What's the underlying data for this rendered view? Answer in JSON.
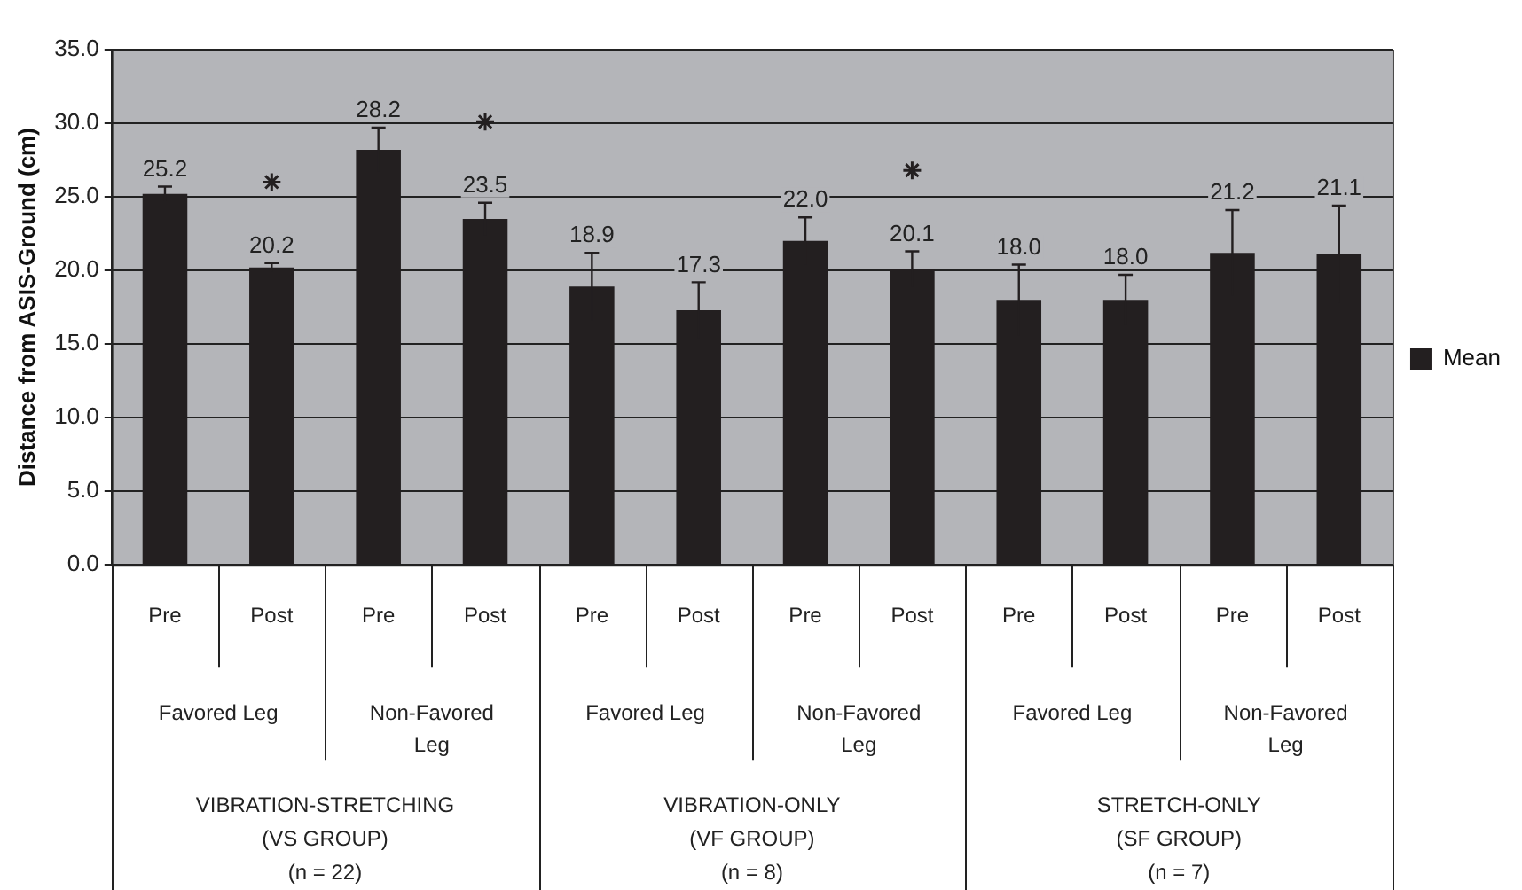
{
  "chart_data": {
    "type": "bar",
    "ylabel": "Distance from ASIS-Ground (cm)",
    "categories": [
      "Pre",
      "Post",
      "Pre",
      "Post",
      "Pre",
      "Post",
      "Pre",
      "Post",
      "Pre",
      "Post",
      "Pre",
      "Post"
    ],
    "series": [
      {
        "name": "Mean",
        "color": "#231f20",
        "values": [
          25.2,
          20.2,
          28.2,
          23.5,
          18.9,
          17.3,
          22.0,
          20.1,
          18.0,
          18.0,
          21.2,
          21.1
        ],
        "errors": [
          0.5,
          0.3,
          1.5,
          1.1,
          2.3,
          1.9,
          1.6,
          1.2,
          2.4,
          1.7,
          2.9,
          3.3
        ],
        "value_labels": [
          "25.2",
          "20.2",
          "28.2",
          "23.5",
          "18.9",
          "17.3",
          "22.0",
          "20.1",
          "18.0",
          "18.0",
          "21.2",
          "21.1"
        ]
      },
      {
        "type": "scatter",
        "marker": "cross",
        "color": "#231f20",
        "values": [
          null,
          26.0,
          null,
          30.1,
          null,
          null,
          null,
          26.8,
          null,
          null,
          null,
          null
        ]
      }
    ],
    "annotations": [
      "Favored Leg",
      "Non-Favored Leg",
      "Favored Leg",
      "Non-Favored Leg",
      "Favored Leg",
      "Non-Favored Leg",
      "VIBRATION-STRETCHING\n(VS GROUP)\n(n = 22)",
      "VIBRATION-ONLY\n(VF GROUP)\n(n = 8)",
      "STRETCH-ONLY\n(SF GROUP)\n(n = 7)"
    ],
    "ylim": [
      0,
      35
    ],
    "yticks": [
      {
        "value": 0,
        "label": "0.0"
      },
      {
        "value": 5,
        "label": "5.0"
      },
      {
        "value": 10,
        "label": "10.0"
      },
      {
        "value": 15,
        "label": "15.0"
      },
      {
        "value": 20,
        "label": "20.0"
      },
      {
        "value": 25,
        "label": "25.0"
      },
      {
        "value": 30,
        "label": "30.0"
      },
      {
        "value": 35,
        "label": "35.0"
      }
    ],
    "grid": "y",
    "legend": "right"
  }
}
